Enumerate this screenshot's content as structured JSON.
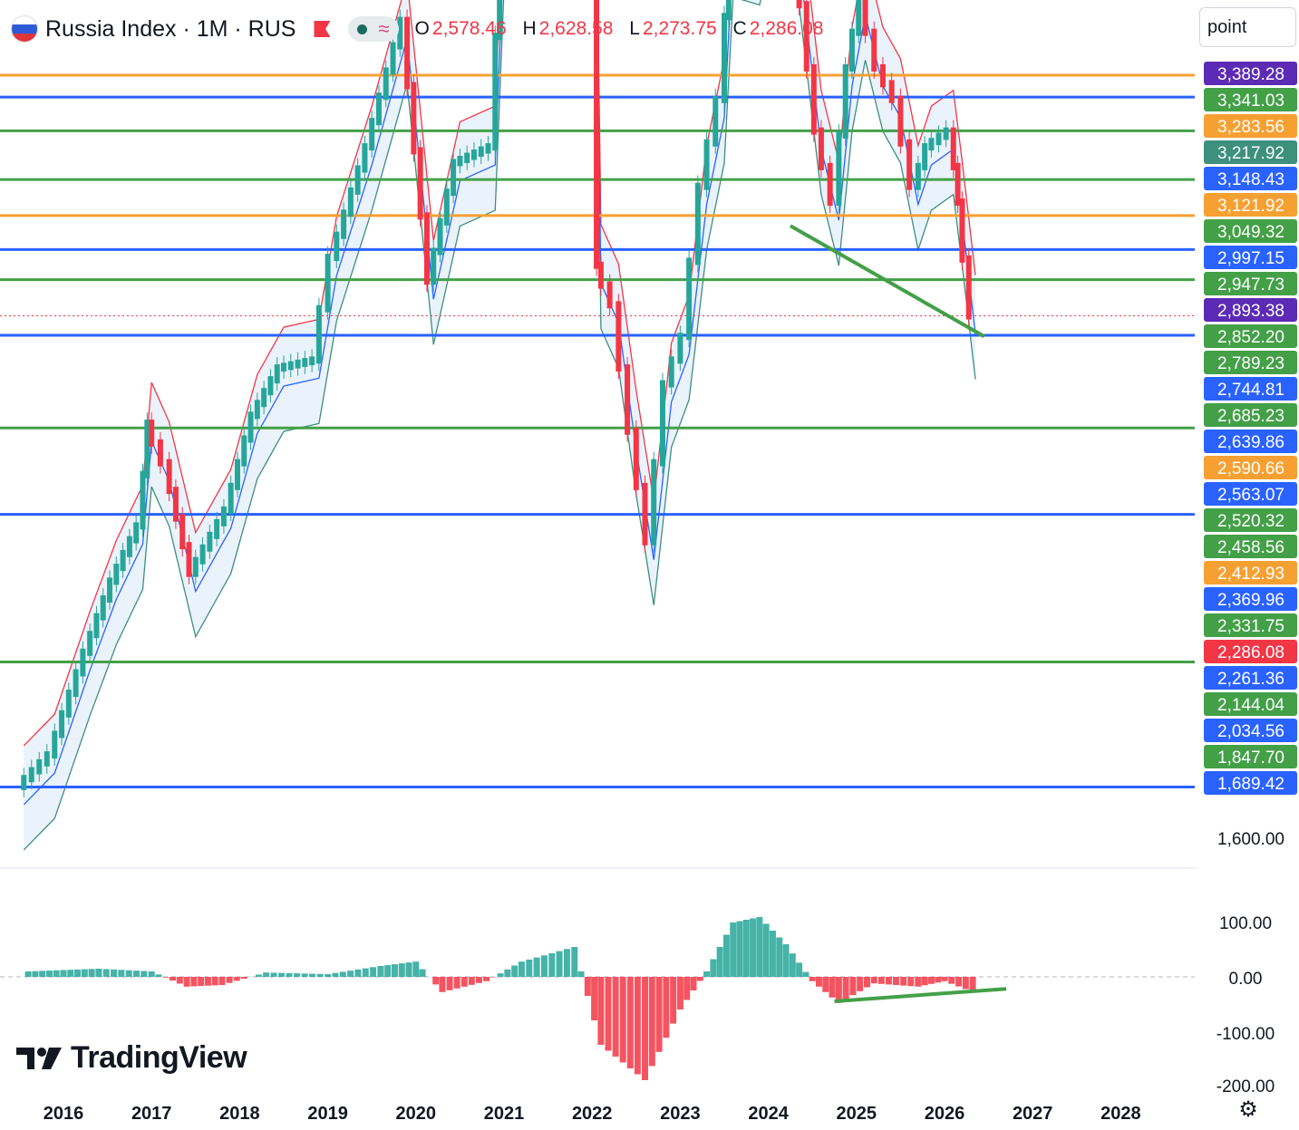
{
  "header": {
    "symbol": "Russia Index · 1M · RUS",
    "ohlc": [
      {
        "key": "O",
        "value": "2,578.46"
      },
      {
        "key": "H",
        "value": "2,628.58"
      },
      {
        "key": "L",
        "value": "2,273.75"
      },
      {
        "key": "C",
        "value": "2,286.08"
      }
    ]
  },
  "axis_unit": "point",
  "brand": "TradingView",
  "colors": {
    "up": "#26a69a",
    "down": "#f23645",
    "blue": "#2962ff",
    "green": "#43a047",
    "orange": "#f7a032",
    "purple": "#5b2bb5",
    "red": "#d9314c",
    "teal": "#3d8f7e",
    "band_fill": "#eaf2fb"
  },
  "chart_data": [
    {
      "type": "candlestick",
      "title": "Russia Index · 1M · RUS",
      "x_axis": {
        "ticks": [
          "2016",
          "2017",
          "2018",
          "2019",
          "2020",
          "2021",
          "2022",
          "2023",
          "2024",
          "2025",
          "2026",
          "2027",
          "2028"
        ]
      },
      "y_axis": {
        "ticks": [
          "1,600.00"
        ],
        "scale": "linear"
      },
      "horizontal_levels": [
        {
          "value": 3389.28,
          "label": "3,389.28",
          "color": "purple"
        },
        {
          "value": 3341.03,
          "label": "3,341.03",
          "color": "green"
        },
        {
          "value": 3283.56,
          "label": "3,283.56",
          "color": "orange"
        },
        {
          "value": 3217.92,
          "label": "3,217.92",
          "color": "teal"
        },
        {
          "value": 3148.43,
          "label": "3,148.43",
          "color": "blue"
        },
        {
          "value": 3121.92,
          "label": "3,121.92",
          "color": "orange"
        },
        {
          "value": 3049.32,
          "label": "3,049.32",
          "color": "green"
        },
        {
          "value": 2997.15,
          "label": "2,997.15",
          "color": "blue"
        },
        {
          "value": 2947.73,
          "label": "2,947.73",
          "color": "green"
        },
        {
          "value": 2893.38,
          "label": "2,893.38",
          "color": "purple"
        },
        {
          "value": 2852.2,
          "label": "2,852.20",
          "color": "green"
        },
        {
          "value": 2789.23,
          "label": "2,789.23",
          "color": "green"
        },
        {
          "value": 2744.81,
          "label": "2,744.81",
          "color": "blue"
        },
        {
          "value": 2685.23,
          "label": "2,685.23",
          "color": "green"
        },
        {
          "value": 2639.86,
          "label": "2,639.86",
          "color": "blue"
        },
        {
          "value": 2590.66,
          "label": "2,590.66",
          "color": "orange"
        },
        {
          "value": 2563.07,
          "label": "2,563.07",
          "color": "blue"
        },
        {
          "value": 2520.32,
          "label": "2,520.32",
          "color": "green"
        },
        {
          "value": 2458.56,
          "label": "2,458.56",
          "color": "green"
        },
        {
          "value": 2412.93,
          "label": "2,412.93",
          "color": "orange"
        },
        {
          "value": 2369.96,
          "label": "2,369.96",
          "color": "blue"
        },
        {
          "value": 2331.75,
          "label": "2,331.75",
          "color": "green"
        },
        {
          "value": 2286.08,
          "label": "2,286.08",
          "color": "down",
          "current": true
        },
        {
          "value": 2261.36,
          "label": "2,261.36",
          "color": "blue"
        },
        {
          "value": 2144.04,
          "label": "2,144.04",
          "color": "green"
        },
        {
          "value": 2034.56,
          "label": "2,034.56",
          "color": "blue"
        },
        {
          "value": 1847.7,
          "label": "1,847.70",
          "color": "green"
        },
        {
          "value": 1689.42,
          "label": "1,689.42",
          "color": "blue"
        }
      ],
      "price_path": [
        {
          "t": 2015.55,
          "v": 1690
        },
        {
          "t": 2015.9,
          "v": 1730
        },
        {
          "t": 2016.3,
          "v": 1860
        },
        {
          "t": 2016.6,
          "v": 1950
        },
        {
          "t": 2016.9,
          "v": 2020
        },
        {
          "t": 2017.0,
          "v": 2150
        },
        {
          "t": 2017.2,
          "v": 2100
        },
        {
          "t": 2017.5,
          "v": 1960
        },
        {
          "t": 2017.9,
          "v": 2040
        },
        {
          "t": 2018.2,
          "v": 2160
        },
        {
          "t": 2018.5,
          "v": 2220
        },
        {
          "t": 2018.9,
          "v": 2230
        },
        {
          "t": 2019.1,
          "v": 2360
        },
        {
          "t": 2019.5,
          "v": 2500
        },
        {
          "t": 2019.9,
          "v": 2660
        },
        {
          "t": 2020.2,
          "v": 2330
        },
        {
          "t": 2020.5,
          "v": 2480
        },
        {
          "t": 2020.9,
          "v": 2500
        },
        {
          "t": 2021.0,
          "v": 2780
        },
        {
          "t": 2021.3,
          "v": 2980
        },
        {
          "t": 2021.6,
          "v": 3180
        },
        {
          "t": 2021.8,
          "v": 3350
        },
        {
          "t": 2022.0,
          "v": 3130
        },
        {
          "t": 2022.1,
          "v": 2350
        },
        {
          "t": 2022.3,
          "v": 2300
        },
        {
          "t": 2022.5,
          "v": 2140
        },
        {
          "t": 2022.7,
          "v": 2000
        },
        {
          "t": 2022.9,
          "v": 2200
        },
        {
          "t": 2023.1,
          "v": 2260
        },
        {
          "t": 2023.3,
          "v": 2450
        },
        {
          "t": 2023.5,
          "v": 2560
        },
        {
          "t": 2023.6,
          "v": 2770
        },
        {
          "t": 2023.9,
          "v": 2760
        },
        {
          "t": 2024.15,
          "v": 2870
        },
        {
          "t": 2024.35,
          "v": 2760
        },
        {
          "t": 2024.6,
          "v": 2520
        },
        {
          "t": 2024.8,
          "v": 2430
        },
        {
          "t": 2024.95,
          "v": 2600
        },
        {
          "t": 2025.1,
          "v": 2690
        },
        {
          "t": 2025.3,
          "v": 2600
        },
        {
          "t": 2025.5,
          "v": 2560
        },
        {
          "t": 2025.7,
          "v": 2450
        },
        {
          "t": 2025.85,
          "v": 2500
        },
        {
          "t": 2026.1,
          "v": 2520
        },
        {
          "t": 2026.2,
          "v": 2430
        },
        {
          "t": 2026.35,
          "v": 2286
        }
      ],
      "trendlines": [
        {
          "from": {
            "t": 2024.85,
            "v": 2910
          },
          "to": {
            "t": 2025.95,
            "v": 2740
          },
          "color": "down"
        },
        {
          "from": {
            "t": 2024.25,
            "v": 2400
          },
          "to": {
            "t": 2026.45,
            "v": 2260
          },
          "color": "green"
        }
      ]
    },
    {
      "type": "bar",
      "title": "MACD",
      "y_axis": {
        "ticks": [
          "100.00",
          "0.00",
          "-100.00",
          "-200.00"
        ]
      },
      "histogram": [
        {
          "t": 2015.6,
          "v": 10
        },
        {
          "t": 2016.4,
          "v": 15
        },
        {
          "t": 2017.0,
          "v": 10
        },
        {
          "t": 2017.4,
          "v": -18
        },
        {
          "t": 2017.8,
          "v": -15
        },
        {
          "t": 2018.3,
          "v": 8
        },
        {
          "t": 2019.0,
          "v": 5
        },
        {
          "t": 2019.6,
          "v": 20
        },
        {
          "t": 2020.0,
          "v": 28
        },
        {
          "t": 2020.3,
          "v": -28
        },
        {
          "t": 2020.8,
          "v": -8
        },
        {
          "t": 2021.2,
          "v": 28
        },
        {
          "t": 2021.8,
          "v": 55
        },
        {
          "t": 2022.1,
          "v": -125
        },
        {
          "t": 2022.6,
          "v": -190
        },
        {
          "t": 2023.0,
          "v": -60
        },
        {
          "t": 2023.3,
          "v": 10
        },
        {
          "t": 2023.6,
          "v": 100
        },
        {
          "t": 2023.9,
          "v": 110
        },
        {
          "t": 2024.2,
          "v": 60
        },
        {
          "t": 2024.5,
          "v": -8
        },
        {
          "t": 2024.8,
          "v": -48
        },
        {
          "t": 2025.2,
          "v": -12
        },
        {
          "t": 2025.7,
          "v": -18
        },
        {
          "t": 2026.0,
          "v": -8
        },
        {
          "t": 2026.4,
          "v": -32
        }
      ],
      "trendline": {
        "from": {
          "t": 2024.75,
          "v": -45
        },
        "to": {
          "t": 2026.7,
          "v": -22
        }
      }
    }
  ]
}
